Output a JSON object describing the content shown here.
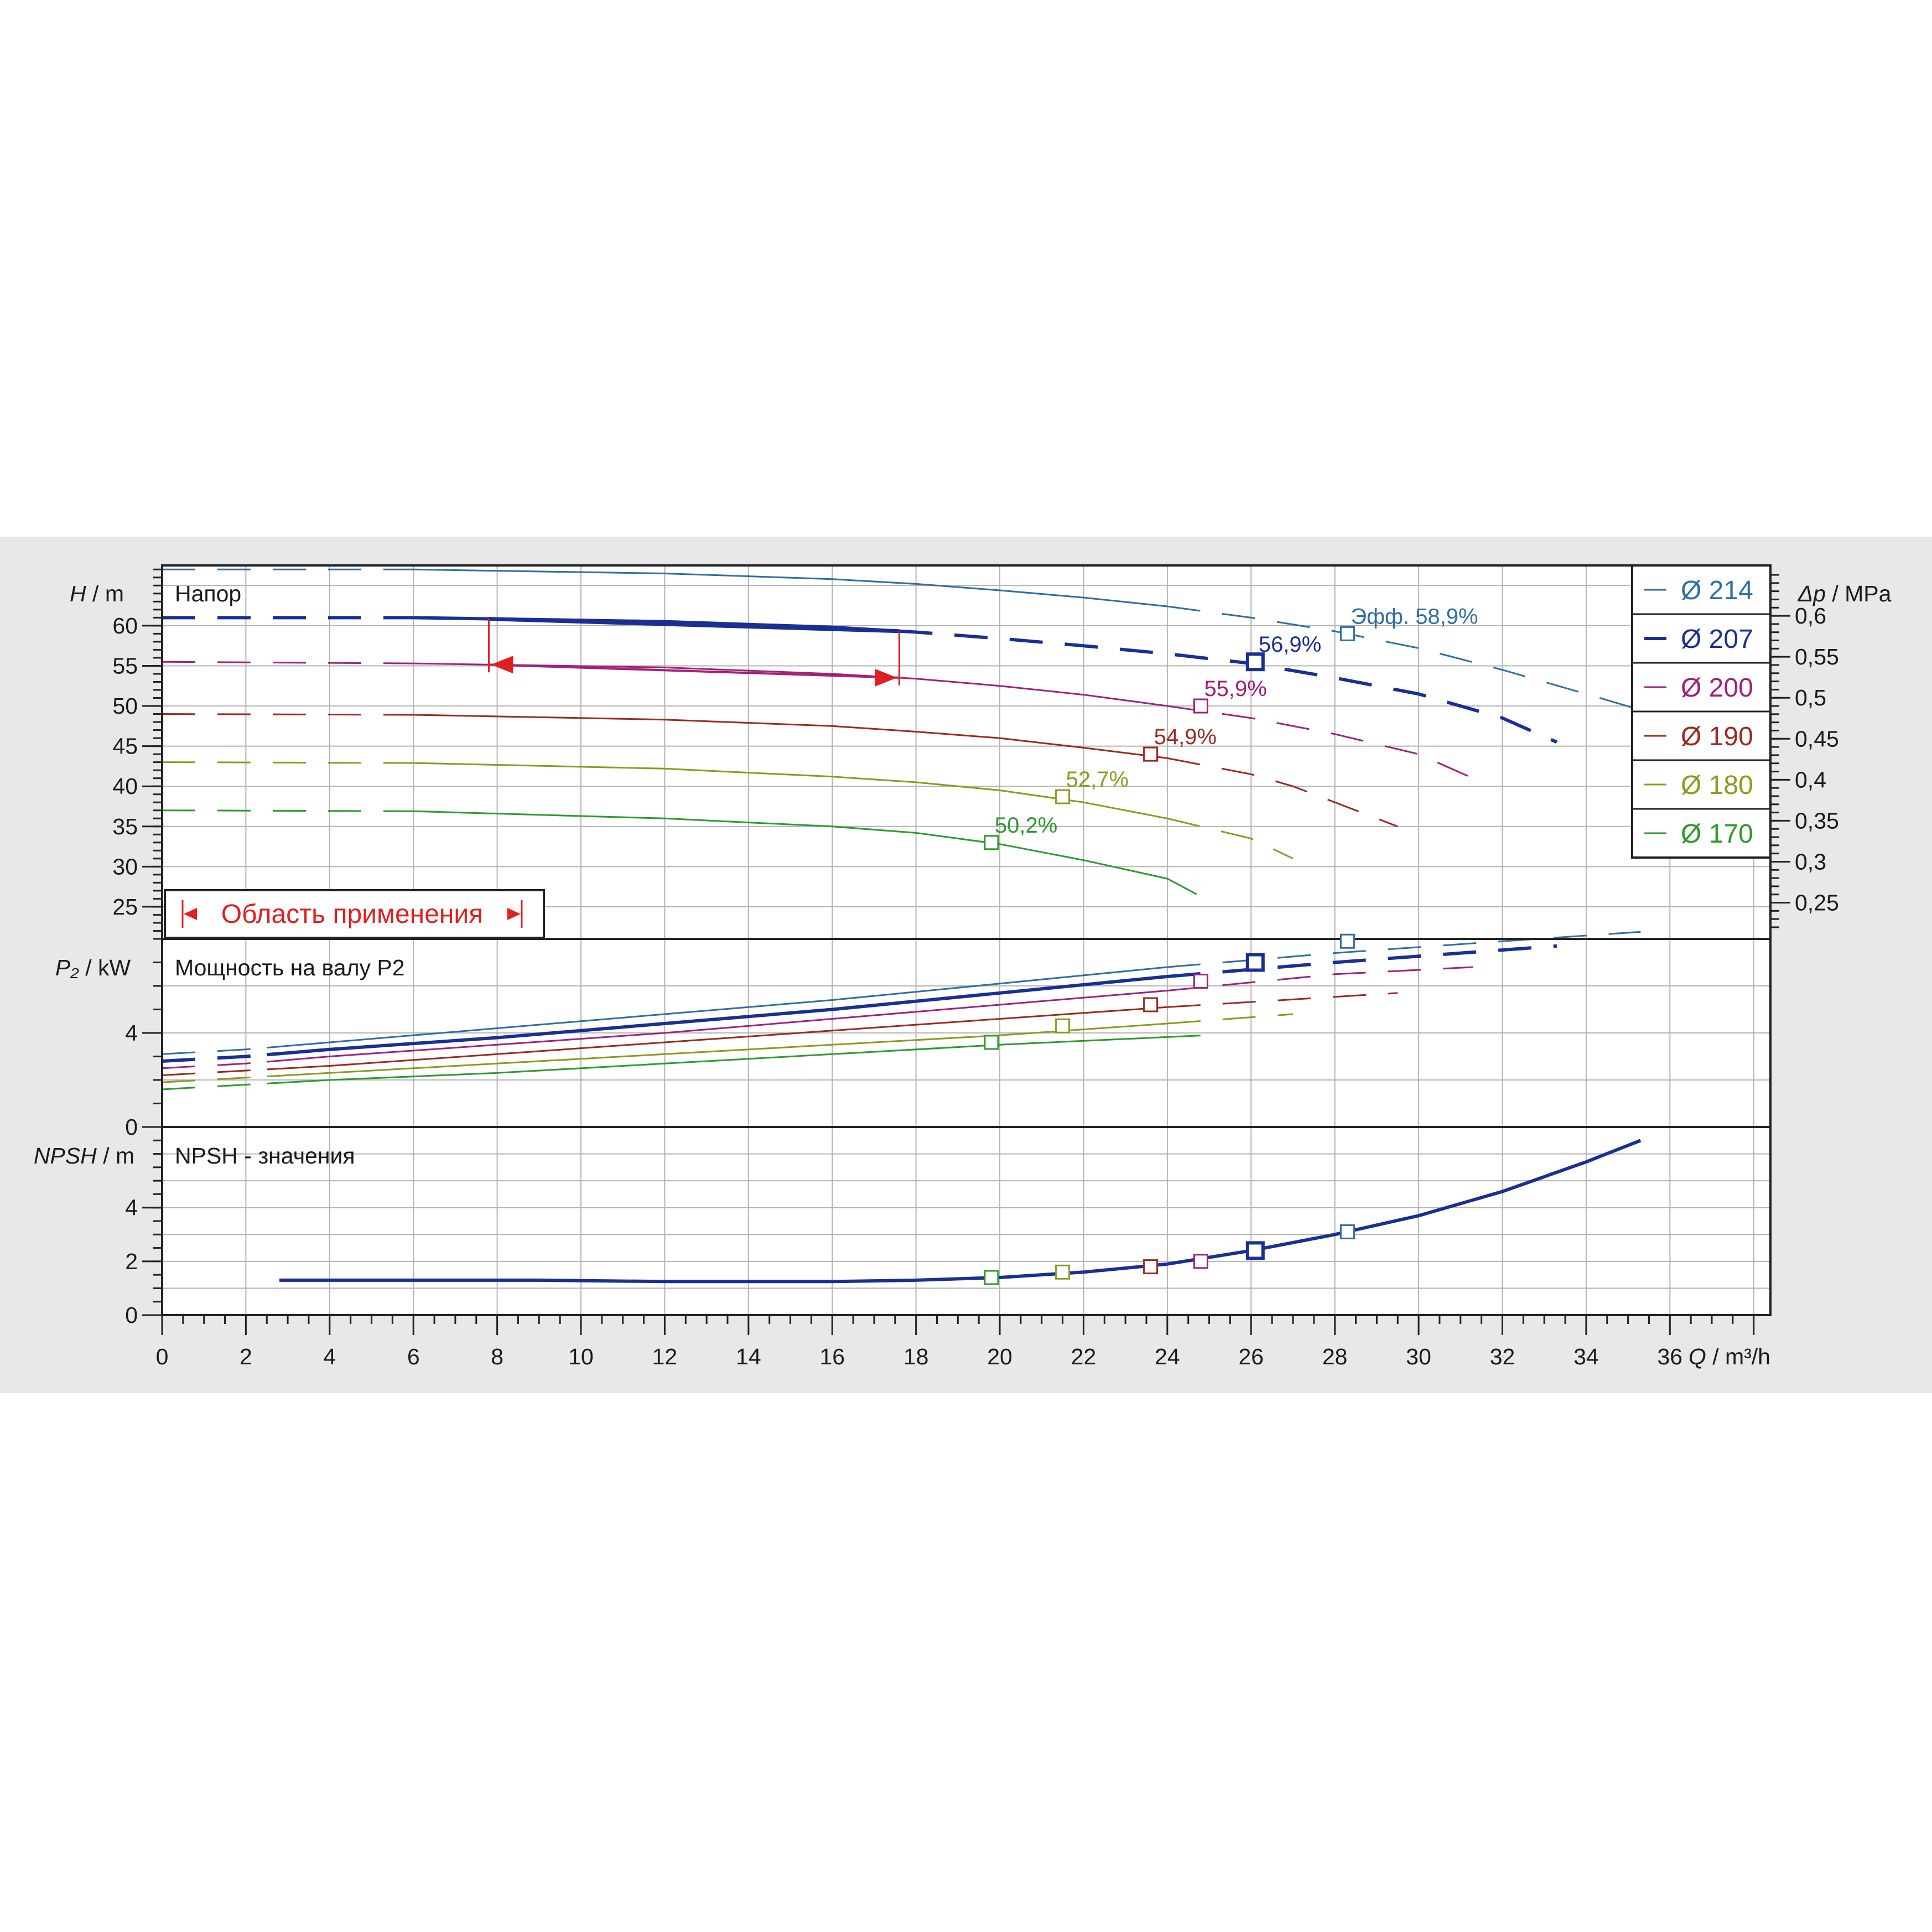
{
  "chart_data": {
    "type": "line",
    "x_axis": {
      "label_symbol": "Q",
      "label_unit": "/ m³/h",
      "range": [
        0,
        38.4
      ],
      "ticks": [
        0,
        2,
        4,
        6,
        8,
        10,
        12,
        14,
        16,
        18,
        20,
        22,
        24,
        26,
        28,
        30,
        32,
        34,
        36
      ],
      "tick_labels": [
        "0",
        "2",
        "4",
        "6",
        "8",
        "10",
        "12",
        "14",
        "16",
        "18",
        "20",
        "22",
        "24",
        "26",
        "28",
        "30",
        "32",
        "34",
        "36"
      ]
    },
    "grid": true,
    "legend": {
      "placement": "top-right",
      "entries": [
        "Ø 214",
        "Ø 207",
        "Ø 200",
        "Ø 190",
        "Ø 180",
        "Ø 170"
      ]
    },
    "series_colors": [
      "#2f6ea3",
      "#1a2f94",
      "#a3207a",
      "#9c2a1e",
      "#8c9a1e",
      "#2e9a2e"
    ],
    "head_panel": {
      "title": "Напор",
      "axis_symbol": "H",
      "axis_unit": "/ m",
      "ylim": [
        21,
        67.5
      ],
      "ticks": [
        25,
        30,
        35,
        40,
        45,
        50,
        55,
        60
      ],
      "tick_labels": [
        "25",
        "30",
        "35",
        "40",
        "45",
        "50",
        "55",
        "60"
      ],
      "right_axis_symbol": "Δp",
      "right_axis_unit": "/ MPa",
      "right_ticks": [
        0.25,
        0.3,
        0.35,
        0.4,
        0.45,
        0.5,
        0.55,
        0.6
      ],
      "right_tick_labels": [
        "0,25",
        "0,3",
        "0,35",
        "0,4",
        "0,45",
        "0,5",
        "0,55",
        "0,6"
      ],
      "series": [
        {
          "name": "Ø 214",
          "x": [
            0,
            6,
            12,
            16,
            18,
            20,
            22,
            24,
            26,
            28,
            30,
            32,
            34,
            35.3
          ],
          "y": [
            67.0,
            67.0,
            66.5,
            65.8,
            65.2,
            64.4,
            63.5,
            62.4,
            61.0,
            59.3,
            57.2,
            54.5,
            51.5,
            49.5
          ]
        },
        {
          "name": "Ø 207",
          "x": [
            0,
            6,
            12,
            16,
            18,
            20,
            22,
            24,
            26,
            28,
            30,
            32,
            33.3
          ],
          "y": [
            61.0,
            61.0,
            60.5,
            59.8,
            59.2,
            58.4,
            57.5,
            56.5,
            55.3,
            53.5,
            51.5,
            48.5,
            45.5
          ]
        },
        {
          "name": "Ø 200",
          "x": [
            0,
            6,
            12,
            16,
            18,
            20,
            22,
            24,
            26,
            28,
            30,
            31.3
          ],
          "y": [
            55.5,
            55.3,
            54.8,
            54.0,
            53.4,
            52.5,
            51.4,
            50.0,
            48.5,
            46.5,
            44.0,
            41.0
          ]
        },
        {
          "name": "Ø 190",
          "x": [
            0,
            6,
            12,
            16,
            18,
            20,
            22,
            24,
            26,
            27,
            28,
            29.5
          ],
          "y": [
            49.0,
            48.9,
            48.3,
            47.5,
            46.8,
            46.0,
            44.8,
            43.5,
            41.5,
            40.0,
            38.0,
            35.0
          ]
        },
        {
          "name": "Ø 180",
          "x": [
            0,
            6,
            12,
            16,
            18,
            20,
            22,
            24,
            26,
            27
          ],
          "y": [
            43.0,
            42.9,
            42.2,
            41.2,
            40.5,
            39.5,
            38.0,
            36.0,
            33.5,
            31.0
          ]
        },
        {
          "name": "Ø 170",
          "x": [
            0,
            6,
            12,
            16,
            18,
            20,
            22,
            24,
            24.9
          ],
          "y": [
            37.0,
            36.9,
            36.0,
            35.0,
            34.2,
            32.8,
            30.8,
            28.5,
            26.0
          ]
        }
      ],
      "bep_points": [
        {
          "series": "Ø 214",
          "x": 28.3,
          "y": 59.0,
          "label": "Эфф.  58,9%"
        },
        {
          "series": "Ø 207",
          "x": 26.1,
          "y": 55.5,
          "label": "56,9%"
        },
        {
          "series": "Ø 200",
          "x": 24.8,
          "y": 50.0,
          "label": "55,9%"
        },
        {
          "series": "Ø 190",
          "x": 23.6,
          "y": 44.0,
          "label": "54,9%"
        },
        {
          "series": "Ø 180",
          "x": 21.5,
          "y": 38.7,
          "label": "52,7%"
        },
        {
          "series": "Ø 170",
          "x": 19.8,
          "y": 33.0,
          "label": "50,2%"
        }
      ],
      "application_range": {
        "label": "Область применения",
        "q_min": 7.8,
        "q_max": 17.6
      }
    },
    "power_panel": {
      "title": "Мощность на валу P2",
      "axis_symbol": "P₂",
      "axis_unit": "/ kW",
      "ylim": [
        0,
        8.0
      ],
      "ticks": [
        0,
        4
      ],
      "tick_labels": [
        "0",
        "4"
      ],
      "series": [
        {
          "name": "Ø 214",
          "x": [
            0,
            2,
            4,
            8,
            12,
            16,
            20,
            24,
            28,
            32,
            35.3
          ],
          "y": [
            3.1,
            3.3,
            3.6,
            4.2,
            4.8,
            5.4,
            6.1,
            6.8,
            7.4,
            7.9,
            8.3
          ]
        },
        {
          "name": "Ø 207",
          "x": [
            0,
            2,
            4,
            8,
            12,
            16,
            20,
            24,
            28,
            33.3
          ],
          "y": [
            2.8,
            3.0,
            3.3,
            3.8,
            4.4,
            5.0,
            5.7,
            6.4,
            7.0,
            7.7
          ]
        },
        {
          "name": "Ø 200",
          "x": [
            0,
            2,
            4,
            8,
            12,
            16,
            20,
            24,
            28,
            31.3
          ],
          "y": [
            2.5,
            2.7,
            3.0,
            3.5,
            4.0,
            4.6,
            5.2,
            5.8,
            6.5,
            6.8
          ]
        },
        {
          "name": "Ø 190",
          "x": [
            0,
            2,
            4,
            8,
            12,
            16,
            20,
            24,
            29.5
          ],
          "y": [
            2.2,
            2.4,
            2.6,
            3.1,
            3.6,
            4.1,
            4.6,
            5.1,
            5.7
          ]
        },
        {
          "name": "Ø 180",
          "x": [
            0,
            2,
            4,
            8,
            12,
            16,
            20,
            24,
            27
          ],
          "y": [
            1.9,
            2.1,
            2.3,
            2.7,
            3.1,
            3.5,
            3.9,
            4.4,
            4.8
          ]
        },
        {
          "name": "Ø 170",
          "x": [
            0,
            2,
            4,
            8,
            12,
            16,
            20,
            24.9
          ],
          "y": [
            1.6,
            1.8,
            2.0,
            2.3,
            2.7,
            3.1,
            3.5,
            3.9
          ]
        }
      ],
      "bep_points": [
        {
          "series": "Ø 214",
          "x": 28.3,
          "y": 7.9
        },
        {
          "series": "Ø 207",
          "x": 26.1,
          "y": 7.0
        },
        {
          "series": "Ø 200",
          "x": 24.8,
          "y": 6.2
        },
        {
          "series": "Ø 190",
          "x": 23.6,
          "y": 5.2
        },
        {
          "series": "Ø 180",
          "x": 21.5,
          "y": 4.3
        },
        {
          "series": "Ø 170",
          "x": 19.8,
          "y": 3.6
        }
      ]
    },
    "npsh_panel": {
      "title": "NPSH - значения",
      "axis_symbol": "NPSH",
      "axis_unit": "/ m",
      "ylim": [
        0,
        7.0
      ],
      "ticks": [
        0,
        2,
        4
      ],
      "tick_labels": [
        "0",
        "2",
        "4"
      ],
      "series": [
        {
          "name": "NPSH",
          "x": [
            2.8,
            9,
            12,
            16,
            18,
            20,
            22,
            24,
            26,
            28,
            30,
            32,
            34,
            35.3
          ],
          "y": [
            1.3,
            1.3,
            1.25,
            1.25,
            1.3,
            1.4,
            1.6,
            1.9,
            2.4,
            3.0,
            3.7,
            4.6,
            5.7,
            6.5
          ]
        }
      ],
      "bep_points": [
        {
          "series": "Ø 214",
          "x": 28.3,
          "y": 3.1
        },
        {
          "series": "Ø 207",
          "x": 26.1,
          "y": 2.4
        },
        {
          "series": "Ø 200",
          "x": 24.8,
          "y": 2.0
        },
        {
          "series": "Ø 190",
          "x": 23.6,
          "y": 1.8
        },
        {
          "series": "Ø 180",
          "x": 21.5,
          "y": 1.6
        },
        {
          "series": "Ø 170",
          "x": 19.8,
          "y": 1.4
        }
      ]
    }
  }
}
